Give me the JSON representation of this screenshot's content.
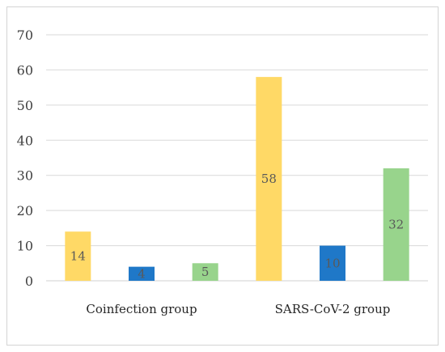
{
  "chart_data": {
    "type": "bar",
    "categories": [
      "Coinfection group",
      "SARS-CoV-2 group"
    ],
    "series": [
      {
        "values": [
          14,
          58
        ],
        "color": "#FFD966"
      },
      {
        "values": [
          4,
          10
        ],
        "color": "#1F78C8"
      },
      {
        "values": [
          5,
          32
        ],
        "color": "#98D48C"
      }
    ],
    "ylim": [
      0,
      70
    ],
    "yticks": [
      0,
      10,
      20,
      30,
      40,
      50,
      60,
      70
    ],
    "grid": true,
    "title": "",
    "xlabel": "",
    "ylabel": ""
  }
}
